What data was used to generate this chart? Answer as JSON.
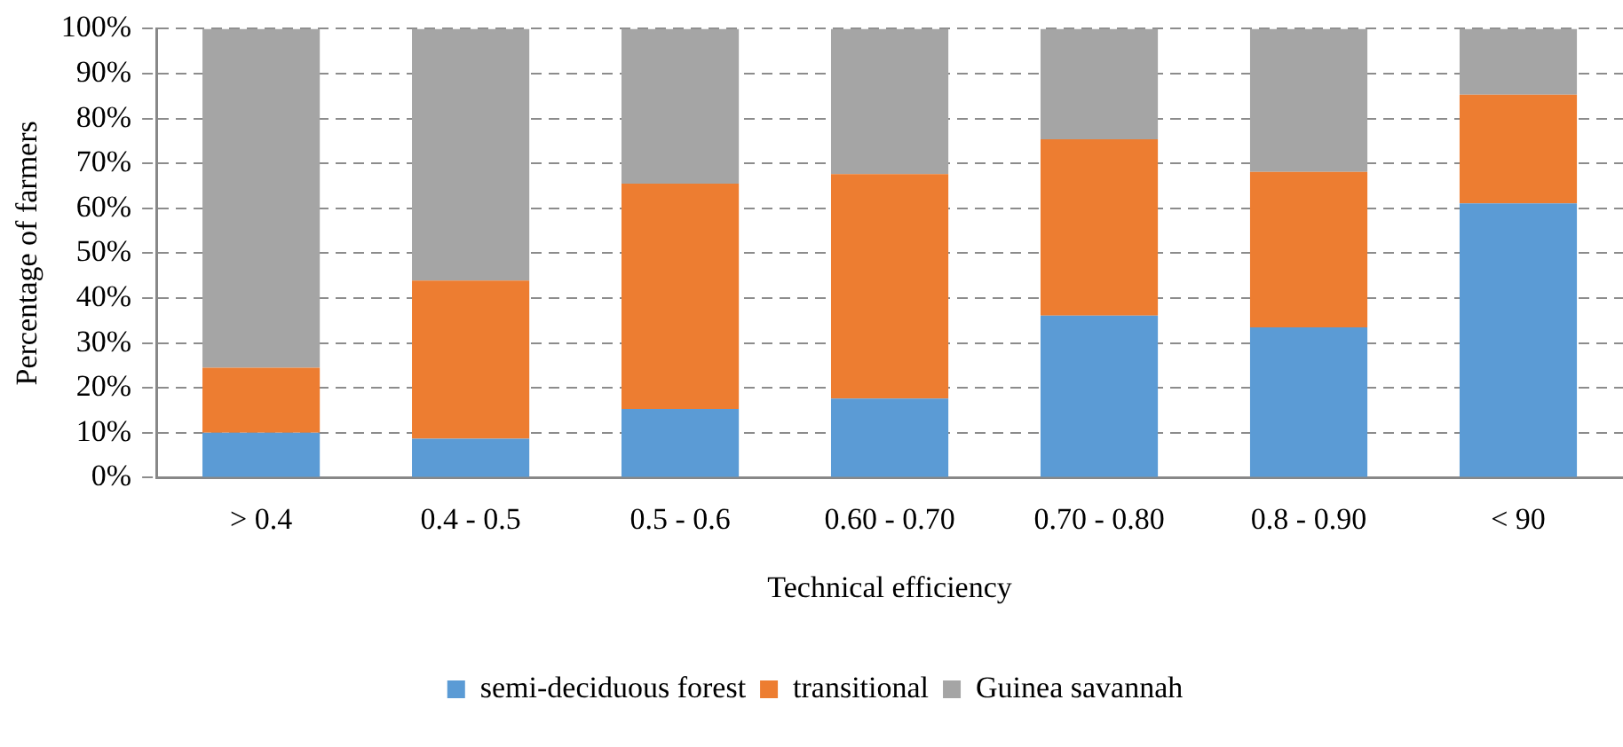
{
  "chart_data": {
    "type": "bar",
    "stacked": true,
    "xlabel": "Technical efficiency",
    "ylabel": "Percentage of farmers",
    "categories": [
      "> 0.4",
      "0.4 - 0.5",
      "0.5 - 0.6",
      "0.60 - 0.70",
      "0.70 - 0.80",
      "0.8 - 0.90",
      "< 90"
    ],
    "series": [
      {
        "name": "semi-deciduous forest",
        "color": "#5b9bd5",
        "values": [
          10,
          8.7,
          15.3,
          17.6,
          36.1,
          33.5,
          61.1
        ]
      },
      {
        "name": "transitional",
        "color": "#ed7d31",
        "values": [
          14.5,
          35.2,
          50.2,
          50,
          39.3,
          34.6,
          24.2
        ]
      },
      {
        "name": "Guinea savannah",
        "color": "#a5a5a5",
        "values": [
          75.5,
          56.1,
          34.5,
          32.4,
          24.6,
          31.9,
          14.7
        ]
      }
    ],
    "ylim": [
      0,
      100
    ],
    "yticks": [
      {
        "value": 0,
        "label": "0%"
      },
      {
        "value": 10,
        "label": "10%"
      },
      {
        "value": 20,
        "label": "20%"
      },
      {
        "value": 30,
        "label": "30%"
      },
      {
        "value": 40,
        "label": "40%"
      },
      {
        "value": 50,
        "label": "50%"
      },
      {
        "value": 60,
        "label": "60%"
      },
      {
        "value": 70,
        "label": "70%"
      },
      {
        "value": 80,
        "label": "80%"
      },
      {
        "value": 90,
        "label": "90%"
      },
      {
        "value": 100,
        "label": "100%"
      }
    ],
    "grid": "y",
    "legend": "bottom"
  }
}
